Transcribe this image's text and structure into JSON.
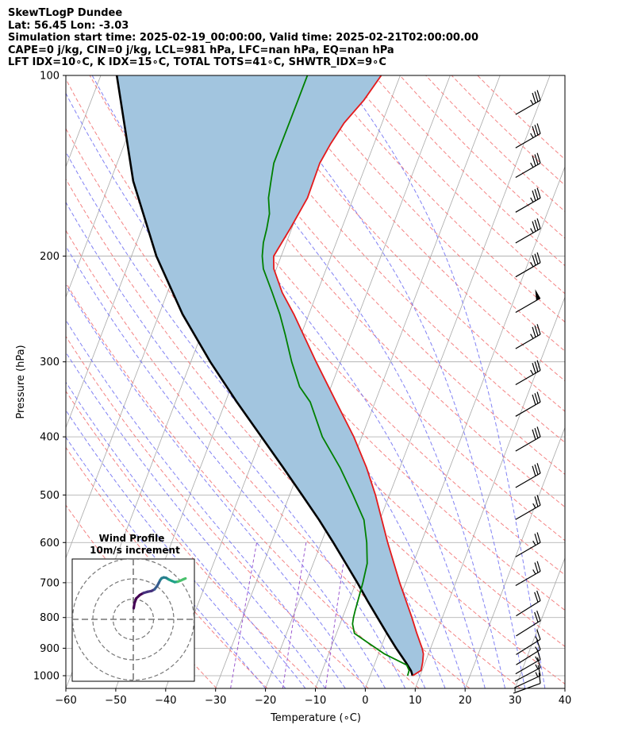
{
  "header": {
    "line1": "SkewTLogP Dundee",
    "line2": "Lat: 56.45   Lon: -3.03",
    "line3": "Simulation start time: 2025-02-19_00:00:00, Valid time: 2025-02-21T02:00:00.00",
    "line4": "CAPE=0 j/kg, CIN=0 j/kg, LCL=981 hPa, LFC=nan hPa, EQ=nan hPa",
    "line5": "LFT IDX=10∘C, K IDX=15∘C, TOTAL TOTS=41∘C, SHWTR_IDX=9∘C"
  },
  "colors": {
    "temperature": "#e41a1c",
    "dewpoint": "#008000",
    "parcel": "#000000",
    "shade": "#a2c5df",
    "isotherm": "#a8a8a8",
    "dry_adiabat": "#f26d6d",
    "moist_adiabat": "#6b6bf2",
    "mixing_ratio": "#9b59d0"
  },
  "chart_data": {
    "type": "line",
    "title": "",
    "xlabel": "Temperature (∘C)",
    "ylabel": "Pressure (hPa)",
    "xlim": [
      -60,
      40
    ],
    "ylim": [
      1050,
      100
    ],
    "xticks": [
      -60,
      -50,
      -40,
      -30,
      -20,
      -10,
      0,
      10,
      20,
      30,
      40
    ],
    "xtick_labels": [
      "−60",
      "−50",
      "−40",
      "−30",
      "−20",
      "−10",
      "0",
      "10",
      "20",
      "30",
      "40"
    ],
    "yticks": [
      1000,
      900,
      800,
      700,
      600,
      500,
      400,
      300,
      200,
      100
    ],
    "ytick_labels": [
      "1000",
      "900",
      "800",
      "700",
      "600",
      "500",
      "400",
      "300",
      "200",
      "100"
    ],
    "series": [
      {
        "name": "Temperature",
        "pressure": [
          1000,
          980,
          950,
          920,
          900,
          850,
          800,
          700,
          600,
          500,
          450,
          400,
          350,
          300,
          250,
          230,
          210,
          200,
          180,
          160,
          140,
          130,
          120,
          110,
          100
        ],
        "values": [
          8.5,
          9.8,
          9.5,
          9.0,
          8.3,
          6.1,
          3.9,
          -1.2,
          -6.7,
          -12.8,
          -16.7,
          -21.6,
          -27.8,
          -34.9,
          -43.0,
          -47.0,
          -50.5,
          -51.5,
          -50.3,
          -49.2,
          -49.4,
          -48.7,
          -47.6,
          -45.4,
          -43.8
        ]
      },
      {
        "name": "Dewpoint",
        "pressure": [
          1000,
          980,
          960,
          920,
          880,
          850,
          820,
          800,
          780,
          750,
          700,
          650,
          600,
          550,
          500,
          450,
          400,
          350,
          330,
          300,
          270,
          250,
          230,
          210,
          200,
          190,
          180,
          170,
          160,
          150,
          140,
          130,
          120,
          110,
          100
        ],
        "values": [
          7.5,
          7.4,
          6.5,
          1.2,
          -3.1,
          -6.4,
          -7.5,
          -7.8,
          -8.0,
          -8.2,
          -8.6,
          -9.2,
          -10.9,
          -13.2,
          -17.3,
          -22.0,
          -27.9,
          -33.0,
          -36.3,
          -39.8,
          -43.2,
          -45.8,
          -49.0,
          -52.6,
          -53.8,
          -54.6,
          -55.0,
          -55.6,
          -57.0,
          -57.8,
          -58.6,
          -58.6,
          -58.6,
          -58.6,
          -58.6
        ]
      },
      {
        "name": "Parcel",
        "pressure": [
          1000,
          981,
          950,
          900,
          850,
          800,
          750,
          700,
          650,
          600,
          550,
          500,
          450,
          400,
          350,
          300,
          250,
          200,
          150,
          100
        ],
        "values": [
          8.5,
          7.8,
          6.1,
          3.1,
          0.1,
          -3.0,
          -6.3,
          -9.7,
          -13.5,
          -17.6,
          -22.2,
          -27.5,
          -33.4,
          -40.1,
          -47.7,
          -56.1,
          -65.3,
          -75.0,
          -85.4,
          -96.8
        ]
      }
    ],
    "wind_barbs": {
      "pressure": [
        1030,
        1000,
        970,
        940,
        905,
        870,
        810,
        750,
        670,
        600,
        520,
        460,
        400,
        350,
        310,
        270,
        235,
        205,
        180,
        160,
        140,
        125,
        110
      ],
      "speed_kt": [
        10,
        15,
        15,
        15,
        15,
        15,
        20,
        20,
        25,
        25,
        25,
        30,
        30,
        30,
        35,
        35,
        50,
        35,
        35,
        35,
        35,
        35,
        35
      ],
      "direction_deg": [
        250,
        245,
        242,
        240,
        238,
        238,
        238,
        238,
        240,
        240,
        240,
        240,
        240,
        240,
        240,
        240,
        240,
        240,
        240,
        240,
        240,
        240,
        240
      ]
    },
    "hodograph": {
      "title": "Wind Profile",
      "subtitle": "10m/s increment",
      "u": [
        0.2,
        0.6,
        1.5,
        3.2,
        5.0,
        7.0,
        9.0,
        10.5,
        11.8,
        12.6,
        13.3,
        14.0,
        15.0,
        16.2,
        17.5,
        19.0,
        20.5,
        22.0,
        23.5,
        24.8,
        25.8
      ],
      "v": [
        5.5,
        8.0,
        10.4,
        12.0,
        13.0,
        13.6,
        14.0,
        14.8,
        16.5,
        18.0,
        19.4,
        20.3,
        20.7,
        20.5,
        19.7,
        19.0,
        18.4,
        18.6,
        19.2,
        19.8,
        20.2
      ]
    }
  }
}
